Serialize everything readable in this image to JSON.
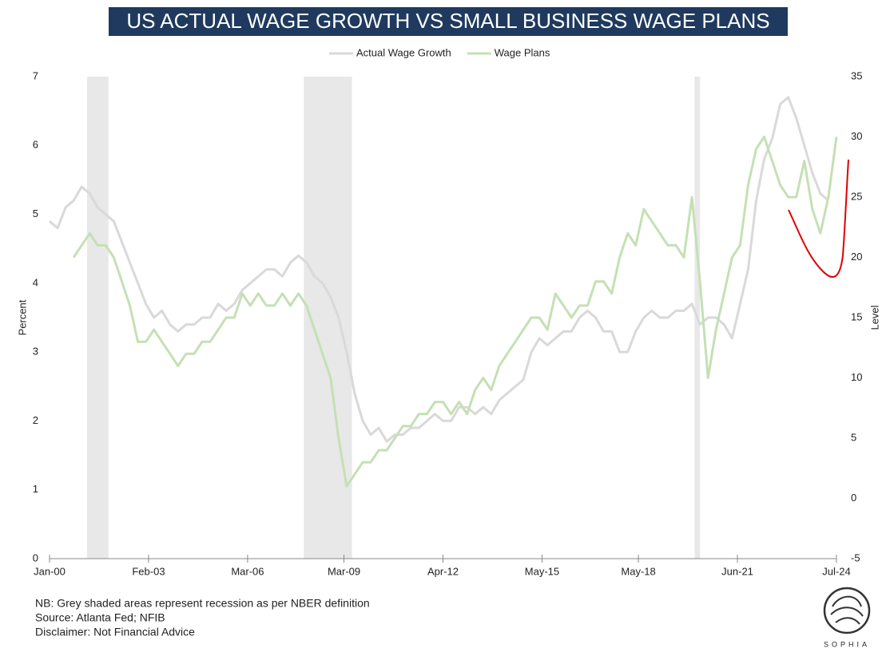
{
  "chart_data": {
    "type": "line",
    "title": "US ACTUAL WAGE GROWTH VS SMALL BUSINESS WAGE PLANS",
    "y_label": "Percent",
    "y2_label": "Level",
    "x": [
      "Jan-00",
      "Apr-00",
      "Jul-00",
      "Oct-00",
      "Jan-01",
      "Apr-01",
      "Jul-01",
      "Oct-01",
      "Jan-02",
      "Apr-02",
      "Jul-02",
      "Oct-02",
      "Jan-03",
      "Apr-03",
      "Jul-03",
      "Oct-03",
      "Jan-04",
      "Apr-04",
      "Jul-04",
      "Oct-04",
      "Jan-05",
      "Apr-05",
      "Jul-05",
      "Oct-05",
      "Jan-06",
      "Apr-06",
      "Jul-06",
      "Oct-06",
      "Jan-07",
      "Apr-07",
      "Jul-07",
      "Oct-07",
      "Jan-08",
      "Apr-08",
      "Jul-08",
      "Oct-08",
      "Jan-09",
      "Apr-09",
      "Jul-09",
      "Oct-09",
      "Jan-10",
      "Apr-10",
      "Jul-10",
      "Oct-10",
      "Jan-11",
      "Apr-11",
      "Jul-11",
      "Oct-11",
      "Jan-12",
      "Apr-12",
      "Jul-12",
      "Oct-12",
      "Jan-13",
      "Apr-13",
      "Jul-13",
      "Oct-13",
      "Jan-14",
      "Apr-14",
      "Jul-14",
      "Oct-14",
      "Jan-15",
      "Apr-15",
      "Jul-15",
      "Oct-15",
      "Jan-16",
      "Apr-16",
      "Jul-16",
      "Oct-16",
      "Jan-17",
      "Apr-17",
      "Jul-17",
      "Oct-17",
      "Jan-18",
      "Apr-18",
      "Jul-18",
      "Oct-18",
      "Jan-19",
      "Apr-19",
      "Jul-19",
      "Oct-19",
      "Jan-20",
      "Apr-20",
      "Jul-20",
      "Oct-20",
      "Jan-21",
      "Apr-21",
      "Jul-21",
      "Oct-21",
      "Jan-22",
      "Apr-22",
      "Jul-22",
      "Oct-22",
      "Jan-23",
      "Apr-23",
      "Jul-23",
      "Oct-23",
      "Jan-24",
      "Apr-24",
      "Jul-24"
    ],
    "series": [
      {
        "name": "Actual Wage Growth",
        "color": "#d9d9d9",
        "axis": "y",
        "values": [
          4.9,
          4.8,
          5.1,
          5.2,
          5.4,
          5.3,
          5.1,
          5.0,
          4.9,
          4.6,
          4.3,
          4.0,
          3.7,
          3.5,
          3.6,
          3.4,
          3.3,
          3.4,
          3.4,
          3.5,
          3.5,
          3.7,
          3.6,
          3.7,
          3.9,
          4.0,
          4.1,
          4.2,
          4.2,
          4.1,
          4.3,
          4.4,
          4.3,
          4.1,
          4.0,
          3.8,
          3.5,
          3.0,
          2.4,
          2.0,
          1.8,
          1.9,
          1.7,
          1.8,
          1.8,
          1.9,
          1.9,
          2.0,
          2.1,
          2.0,
          2.0,
          2.2,
          2.2,
          2.1,
          2.2,
          2.1,
          2.3,
          2.4,
          2.5,
          2.6,
          3.0,
          3.2,
          3.1,
          3.2,
          3.3,
          3.3,
          3.5,
          3.6,
          3.5,
          3.3,
          3.3,
          3.0,
          3.0,
          3.3,
          3.5,
          3.6,
          3.5,
          3.5,
          3.6,
          3.6,
          3.7,
          3.4,
          3.5,
          3.5,
          3.4,
          3.2,
          3.7,
          4.2,
          5.2,
          5.8,
          6.1,
          6.6,
          6.7,
          6.4,
          6.0,
          5.6,
          5.3,
          5.2,
          null
        ]
      },
      {
        "name": "Wage Plans",
        "color": "#c5e0b4",
        "axis": "y2",
        "values": [
          null,
          null,
          null,
          20,
          21,
          22,
          21,
          21,
          20,
          18,
          16,
          13,
          13,
          14,
          13,
          12,
          11,
          12,
          12,
          13,
          13,
          14,
          15,
          15,
          17,
          16,
          17,
          16,
          16,
          17,
          16,
          17,
          16,
          14,
          12,
          10,
          5,
          1,
          2,
          3,
          3,
          4,
          4,
          5,
          6,
          6,
          7,
          7,
          8,
          8,
          7,
          8,
          7,
          9,
          10,
          9,
          11,
          12,
          13,
          14,
          15,
          15,
          14,
          17,
          16,
          15,
          16,
          16,
          18,
          18,
          17,
          20,
          22,
          21,
          24,
          23,
          22,
          21,
          21,
          20,
          25,
          18,
          10,
          14,
          17,
          20,
          21,
          26,
          29,
          30,
          28,
          26,
          25,
          25,
          28,
          24,
          22,
          25,
          30
        ]
      }
    ],
    "xlim": [
      "Jan-00",
      "Jul-24"
    ],
    "xticks": [
      "Jan-00",
      "Feb-03",
      "Mar-06",
      "Mar-09",
      "Apr-12",
      "May-15",
      "May-18",
      "Jun-21",
      "Jul-24"
    ],
    "ylim": [
      0,
      7
    ],
    "yticks": [
      0,
      1,
      2,
      3,
      4,
      5,
      6,
      7
    ],
    "y2lim": [
      -5,
      35
    ],
    "y2ticks": [
      -5,
      0,
      5,
      10,
      15,
      20,
      25,
      30,
      35
    ],
    "recessions": [
      [
        "Mar-01",
        "Nov-01"
      ],
      [
        "Dec-07",
        "Jun-09"
      ],
      [
        "Feb-20",
        "Apr-20"
      ]
    ],
    "notes": [
      "NB: Grey shaded areas represent recession as per NBER definition",
      "Source: Atlanta Fed; NFIB",
      "Disclaimer: Not Financial Advice"
    ],
    "logo": "SOPHIA"
  }
}
